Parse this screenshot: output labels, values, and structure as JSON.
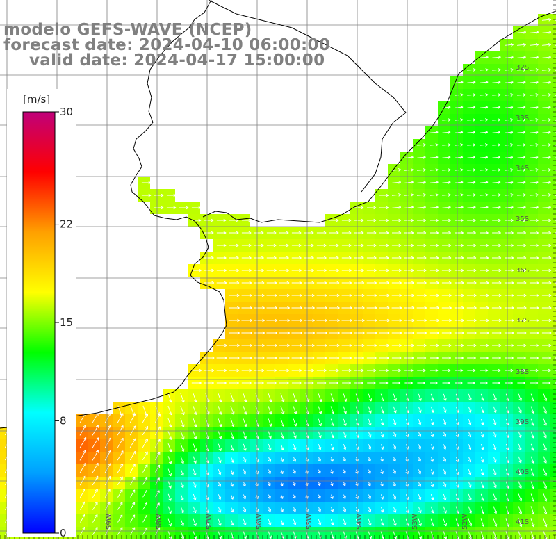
{
  "title": {
    "model": "modelo GEFS-WAVE (NCEP)",
    "forecast": "forecast date: 2024-04-10 06:00:00",
    "valid": "valid date: 2024-04-17 15:00:00"
  },
  "colorbar": {
    "unit": "[m/s]",
    "min": 0,
    "max": 30,
    "ticks": [
      {
        "label": "30",
        "value": 30
      },
      {
        "label": "22",
        "value": 22
      },
      {
        "label": "15",
        "value": 15
      },
      {
        "label": "8",
        "value": 8
      },
      {
        "label": "0",
        "value": 0
      }
    ],
    "stops": [
      "#0000ff",
      "#00a0ff",
      "#00ffff",
      "#00ff00",
      "#ffff00",
      "#ffa000",
      "#ff0000",
      "#c0007a"
    ]
  },
  "lat_labels": [
    "32S",
    "33S",
    "34S",
    "35S",
    "36S",
    "37S",
    "38S",
    "39S",
    "40S",
    "41S"
  ],
  "lon_labels": [
    "59W",
    "58W",
    "57W",
    "56W",
    "55W",
    "54W",
    "53W",
    "52W"
  ],
  "colors": {
    "land": "#ffffff",
    "grid": "#808080",
    "coast": "#000000",
    "arrow": "#ffffff"
  }
}
